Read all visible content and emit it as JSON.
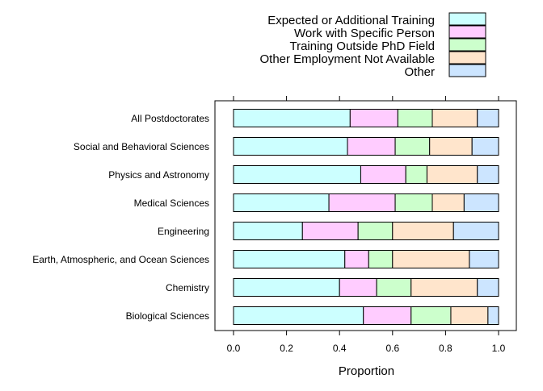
{
  "chart_data": {
    "type": "bar",
    "orientation": "horizontal",
    "stacked": true,
    "xlabel": "Proportion",
    "xlim": [
      0,
      1
    ],
    "xticks": [
      "0.0",
      "0.2",
      "0.4",
      "0.6",
      "0.8",
      "1.0"
    ],
    "legend_position": "top",
    "categories": [
      "All Postdoctorates",
      "Social and Behavioral Sciences",
      "Physics and Astronomy",
      "Medical Sciences",
      "Engineering",
      "Earth, Atmospheric, and Ocean Sciences",
      "Chemistry",
      "Biological Sciences"
    ],
    "series": [
      {
        "name": "Expected or Additional Training",
        "color": "#CCFFFF",
        "values": [
          0.44,
          0.43,
          0.48,
          0.36,
          0.26,
          0.42,
          0.4,
          0.49
        ]
      },
      {
        "name": "Work with Specific Person",
        "color": "#FFCCFF",
        "values": [
          0.18,
          0.18,
          0.17,
          0.25,
          0.21,
          0.09,
          0.14,
          0.18
        ]
      },
      {
        "name": "Training Outside PhD Field",
        "color": "#CCFFCC",
        "values": [
          0.13,
          0.13,
          0.08,
          0.14,
          0.13,
          0.09,
          0.13,
          0.15
        ]
      },
      {
        "name": "Other Employment Not Available",
        "color": "#FFE5CC",
        "values": [
          0.17,
          0.16,
          0.19,
          0.12,
          0.23,
          0.29,
          0.25,
          0.14
        ]
      },
      {
        "name": "Other",
        "color": "#CCE5FF",
        "values": [
          0.08,
          0.1,
          0.08,
          0.13,
          0.17,
          0.11,
          0.08,
          0.04
        ]
      }
    ]
  }
}
